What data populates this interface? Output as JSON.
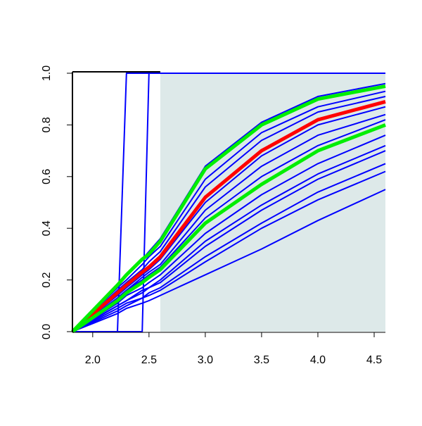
{
  "chart_data": {
    "type": "line",
    "x": [
      1.82,
      2.22,
      2.3,
      2.44,
      2.5,
      2.6,
      3.0,
      3.5,
      4.0,
      4.6
    ],
    "xlim": [
      1.82,
      4.6
    ],
    "ylim": [
      0,
      1
    ],
    "xticks": [
      {
        "value": 2,
        "label": "2.0"
      },
      2.5,
      {
        "value": 3,
        "label": "3.0"
      },
      3.5,
      {
        "value": 4,
        "label": "4.0"
      },
      4.5
    ],
    "yticks": [
      {
        "value": 0,
        "label": "0.0"
      },
      0.2,
      0.4,
      0.6,
      0.8,
      {
        "value": 1,
        "label": "1.0"
      }
    ],
    "shade_from": 2.6,
    "shade_color": "#dde9e9",
    "series": [
      {
        "color": "#0000ff",
        "values": [
          0,
          0,
          1,
          1,
          1,
          1,
          1,
          1,
          1,
          1
        ]
      },
      {
        "color": "#0000ff",
        "values": [
          0,
          0,
          0,
          0,
          1,
          1,
          1,
          1,
          1,
          1
        ]
      },
      {
        "color": "#0000ff",
        "values": [
          0,
          0.18,
          0.22,
          0.28,
          0.31,
          0.36,
          0.64,
          0.81,
          0.91,
          0.96
        ]
      },
      {
        "color": "#0000ff",
        "values": [
          0,
          0.17,
          0.2,
          0.26,
          0.29,
          0.33,
          0.59,
          0.77,
          0.87,
          0.93
        ]
      },
      {
        "color": "#0000ff",
        "values": [
          0,
          0.16,
          0.19,
          0.24,
          0.27,
          0.31,
          0.56,
          0.74,
          0.85,
          0.91
        ]
      },
      {
        "color": "#0000ff",
        "values": [
          0,
          0.14,
          0.17,
          0.22,
          0.24,
          0.28,
          0.5,
          0.68,
          0.8,
          0.87
        ]
      },
      {
        "color": "#0000ff",
        "values": [
          0,
          0.13,
          0.16,
          0.21,
          0.23,
          0.26,
          0.47,
          0.64,
          0.76,
          0.84
        ]
      },
      {
        "color": "#0000ff",
        "values": [
          0,
          0.13,
          0.16,
          0.2,
          0.22,
          0.25,
          0.44,
          0.6,
          0.72,
          0.82
        ]
      },
      {
        "color": "#0000ff",
        "values": [
          0,
          0.11,
          0.14,
          0.17,
          0.19,
          0.22,
          0.38,
          0.53,
          0.65,
          0.76
        ]
      },
      {
        "color": "#0000ff",
        "values": [
          0,
          0.1,
          0.12,
          0.16,
          0.17,
          0.2,
          0.35,
          0.49,
          0.61,
          0.72
        ]
      },
      {
        "color": "#0000ff",
        "values": [
          0,
          0.1,
          0.12,
          0.15,
          0.17,
          0.19,
          0.33,
          0.47,
          0.59,
          0.7
        ]
      },
      {
        "color": "#0000ff",
        "values": [
          0,
          0.09,
          0.11,
          0.13,
          0.15,
          0.17,
          0.29,
          0.42,
          0.54,
          0.65
        ]
      },
      {
        "color": "#0000ff",
        "values": [
          0,
          0.08,
          0.1,
          0.13,
          0.14,
          0.16,
          0.27,
          0.4,
          0.51,
          0.62
        ]
      },
      {
        "color": "#0000ff",
        "values": [
          0,
          0.07,
          0.09,
          0.11,
          0.12,
          0.14,
          0.22,
          0.32,
          0.43,
          0.55
        ]
      },
      {
        "color": "#ff0000",
        "values": [
          0,
          0.15,
          0.18,
          0.23,
          0.25,
          0.29,
          0.52,
          0.7,
          0.82,
          0.89
        ]
      },
      {
        "color": "#00ee00",
        "values": [
          0,
          0.18,
          0.22,
          0.28,
          0.3,
          0.35,
          0.63,
          0.8,
          0.9,
          0.95
        ]
      },
      {
        "color": "#00ee00",
        "values": [
          0,
          0.12,
          0.15,
          0.19,
          0.21,
          0.24,
          0.42,
          0.57,
          0.7,
          0.8
        ]
      }
    ]
  }
}
